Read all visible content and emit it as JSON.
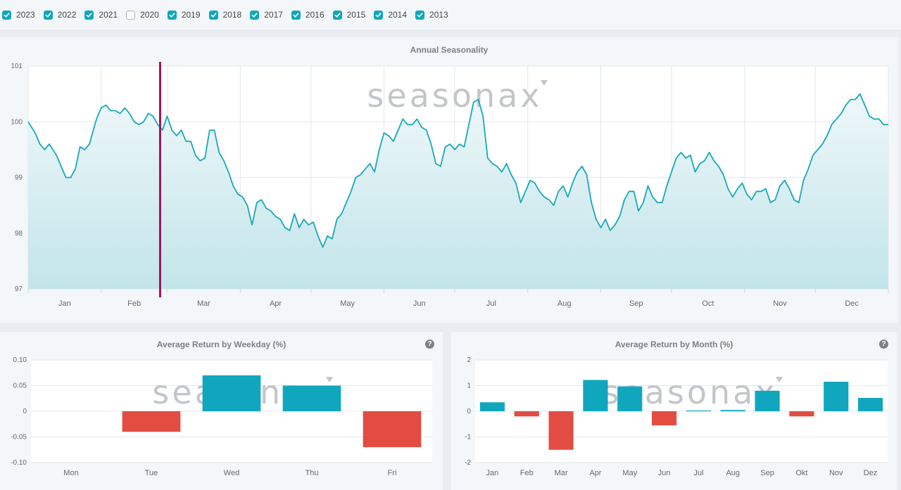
{
  "years": [
    {
      "label": "2023",
      "checked": true
    },
    {
      "label": "2022",
      "checked": true
    },
    {
      "label": "2021",
      "checked": true
    },
    {
      "label": "2020",
      "checked": false
    },
    {
      "label": "2019",
      "checked": true
    },
    {
      "label": "2018",
      "checked": true
    },
    {
      "label": "2017",
      "checked": true
    },
    {
      "label": "2016",
      "checked": true
    },
    {
      "label": "2015",
      "checked": true
    },
    {
      "label": "2014",
      "checked": true
    },
    {
      "label": "2013",
      "checked": true
    }
  ],
  "watermark": "seasonax",
  "help_icon_glyph": "?",
  "colors": {
    "accent": "#10a7be",
    "line": "#17a9b8",
    "marker": "#a3145b",
    "negative": "#e24c42"
  },
  "chart_data": [
    {
      "type": "area",
      "title": "Annual Seasonality",
      "ylim": [
        97,
        101
      ],
      "yticks": [
        "101",
        "100",
        "99",
        "98",
        "97"
      ],
      "months": [
        "Jan",
        "Feb",
        "Mar",
        "Apr",
        "May",
        "Jun",
        "Jul",
        "Aug",
        "Sep",
        "Oct",
        "Nov",
        "Dec"
      ],
      "marker_day": 57,
      "grid": true,
      "series": [
        {
          "points": [
            [
              1,
              100.0
            ],
            [
              4,
              99.8
            ],
            [
              6,
              99.6
            ],
            [
              8,
              99.5
            ],
            [
              10,
              99.6
            ],
            [
              13,
              99.4
            ],
            [
              15,
              99.2
            ],
            [
              17,
              99.0
            ],
            [
              19,
              99.0
            ],
            [
              21,
              99.15
            ],
            [
              23,
              99.55
            ],
            [
              25,
              99.5
            ],
            [
              27,
              99.6
            ],
            [
              30,
              100.05
            ],
            [
              32,
              100.25
            ],
            [
              34,
              100.3
            ],
            [
              36,
              100.2
            ],
            [
              38,
              100.2
            ],
            [
              40,
              100.15
            ],
            [
              42,
              100.25
            ],
            [
              44,
              100.15
            ],
            [
              46,
              100.0
            ],
            [
              48,
              99.95
            ],
            [
              50,
              100.0
            ],
            [
              52,
              100.15
            ],
            [
              54,
              100.1
            ],
            [
              56,
              99.95
            ],
            [
              58,
              99.85
            ],
            [
              60,
              100.1
            ],
            [
              62,
              99.85
            ],
            [
              64,
              99.75
            ],
            [
              66,
              99.85
            ],
            [
              68,
              99.65
            ],
            [
              70,
              99.65
            ],
            [
              72,
              99.4
            ],
            [
              74,
              99.3
            ],
            [
              76,
              99.35
            ],
            [
              78,
              99.85
            ],
            [
              80,
              99.85
            ],
            [
              82,
              99.45
            ],
            [
              84,
              99.3
            ],
            [
              86,
              99.1
            ],
            [
              88,
              98.85
            ],
            [
              90,
              98.7
            ],
            [
              92,
              98.65
            ],
            [
              94,
              98.5
            ],
            [
              96,
              98.15
            ],
            [
              98,
              98.55
            ],
            [
              100,
              98.6
            ],
            [
              102,
              98.45
            ],
            [
              104,
              98.4
            ],
            [
              106,
              98.3
            ],
            [
              108,
              98.25
            ],
            [
              110,
              98.1
            ],
            [
              112,
              98.05
            ],
            [
              114,
              98.35
            ],
            [
              116,
              98.1
            ],
            [
              118,
              98.25
            ],
            [
              120,
              98.15
            ],
            [
              122,
              98.2
            ],
            [
              124,
              97.95
            ],
            [
              126,
              97.75
            ],
            [
              128,
              97.95
            ],
            [
              130,
              97.9
            ],
            [
              132,
              98.25
            ],
            [
              134,
              98.35
            ],
            [
              136,
              98.55
            ],
            [
              138,
              98.75
            ],
            [
              140,
              99.0
            ],
            [
              142,
              99.05
            ],
            [
              144,
              99.15
            ],
            [
              146,
              99.25
            ],
            [
              148,
              99.1
            ],
            [
              150,
              99.5
            ],
            [
              152,
              99.8
            ],
            [
              154,
              99.75
            ],
            [
              156,
              99.65
            ],
            [
              158,
              99.85
            ],
            [
              160,
              100.05
            ],
            [
              162,
              99.95
            ],
            [
              164,
              99.95
            ],
            [
              166,
              100.05
            ],
            [
              168,
              99.9
            ],
            [
              170,
              99.85
            ],
            [
              172,
              99.6
            ],
            [
              174,
              99.25
            ],
            [
              176,
              99.2
            ],
            [
              178,
              99.55
            ],
            [
              180,
              99.6
            ],
            [
              182,
              99.5
            ],
            [
              184,
              99.6
            ],
            [
              186,
              99.55
            ],
            [
              188,
              99.95
            ],
            [
              190,
              100.35
            ],
            [
              192,
              100.4
            ],
            [
              194,
              100.1
            ],
            [
              196,
              99.35
            ],
            [
              198,
              99.25
            ],
            [
              200,
              99.2
            ],
            [
              202,
              99.1
            ],
            [
              204,
              99.25
            ],
            [
              206,
              99.05
            ],
            [
              208,
              98.9
            ],
            [
              210,
              98.55
            ],
            [
              212,
              98.75
            ],
            [
              214,
              98.95
            ],
            [
              216,
              98.9
            ],
            [
              218,
              98.75
            ],
            [
              220,
              98.65
            ],
            [
              222,
              98.6
            ],
            [
              224,
              98.5
            ],
            [
              226,
              98.75
            ],
            [
              228,
              98.85
            ],
            [
              230,
              98.65
            ],
            [
              232,
              98.9
            ],
            [
              234,
              99.1
            ],
            [
              236,
              99.2
            ],
            [
              238,
              99.05
            ],
            [
              240,
              98.55
            ],
            [
              242,
              98.25
            ],
            [
              244,
              98.1
            ],
            [
              246,
              98.25
            ],
            [
              248,
              98.05
            ],
            [
              250,
              98.15
            ],
            [
              252,
              98.3
            ],
            [
              254,
              98.6
            ],
            [
              256,
              98.75
            ],
            [
              258,
              98.75
            ],
            [
              260,
              98.4
            ],
            [
              262,
              98.55
            ],
            [
              264,
              98.85
            ],
            [
              266,
              98.65
            ],
            [
              268,
              98.55
            ],
            [
              270,
              98.55
            ],
            [
              272,
              98.85
            ],
            [
              274,
              99.1
            ],
            [
              276,
              99.35
            ],
            [
              278,
              99.45
            ],
            [
              280,
              99.35
            ],
            [
              282,
              99.4
            ],
            [
              284,
              99.1
            ],
            [
              286,
              99.25
            ],
            [
              288,
              99.3
            ],
            [
              290,
              99.45
            ],
            [
              292,
              99.3
            ],
            [
              294,
              99.2
            ],
            [
              296,
              99.05
            ],
            [
              298,
              98.8
            ],
            [
              300,
              98.65
            ],
            [
              302,
              98.8
            ],
            [
              304,
              98.9
            ],
            [
              306,
              98.7
            ],
            [
              308,
              98.6
            ],
            [
              310,
              98.75
            ],
            [
              312,
              98.75
            ],
            [
              314,
              98.8
            ],
            [
              316,
              98.55
            ],
            [
              318,
              98.6
            ],
            [
              320,
              98.85
            ],
            [
              322,
              98.95
            ],
            [
              324,
              98.8
            ],
            [
              326,
              98.6
            ],
            [
              328,
              98.55
            ],
            [
              330,
              98.95
            ],
            [
              332,
              99.15
            ],
            [
              334,
              99.4
            ],
            [
              336,
              99.5
            ],
            [
              338,
              99.6
            ],
            [
              340,
              99.75
            ],
            [
              342,
              99.95
            ],
            [
              344,
              100.05
            ],
            [
              346,
              100.15
            ],
            [
              348,
              100.3
            ],
            [
              350,
              100.4
            ],
            [
              352,
              100.4
            ],
            [
              354,
              100.5
            ],
            [
              356,
              100.3
            ],
            [
              358,
              100.1
            ],
            [
              360,
              100.05
            ],
            [
              362,
              100.05
            ],
            [
              364,
              99.95
            ],
            [
              366,
              99.95
            ]
          ]
        }
      ]
    },
    {
      "type": "bar",
      "title": "Average Return by Weekday (%)",
      "categories": [
        "Mon",
        "Tue",
        "Wed",
        "Thu",
        "Fri"
      ],
      "values": [
        0,
        -0.04,
        0.07,
        0.05,
        -0.07
      ],
      "ylim": [
        -0.1,
        0.1
      ],
      "yticks": [
        "0.10",
        "0.05",
        "0",
        "-0.05",
        "-0.10"
      ]
    },
    {
      "type": "bar",
      "title": "Average Return by Month (%)",
      "categories": [
        "Jan",
        "Feb",
        "Mar",
        "Apr",
        "May",
        "Jun",
        "Jul",
        "Aug",
        "Sep",
        "Okt",
        "Nov",
        "Dez"
      ],
      "values": [
        0.35,
        -0.2,
        -1.5,
        1.22,
        0.97,
        -0.55,
        0.03,
        0.05,
        0.8,
        -0.2,
        1.15,
        0.52
      ],
      "ylim": [
        -2,
        2
      ],
      "yticks": [
        "2",
        "1",
        "0",
        "-1",
        "-2"
      ]
    }
  ]
}
